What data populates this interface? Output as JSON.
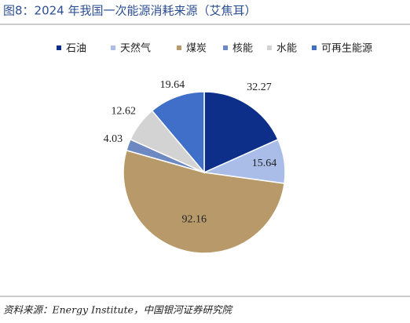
{
  "chart_data": {
    "type": "pie",
    "title": "图8：2024 年我国一次能源消耗来源（艾焦耳）",
    "categories": [
      "石油",
      "天然气",
      "煤炭",
      "核能",
      "水能",
      "可再生能源"
    ],
    "values": [
      32.27,
      15.64,
      92.16,
      4.03,
      12.62,
      19.64
    ],
    "colors": [
      "#0d2f8a",
      "#a9bde8",
      "#b89a6a",
      "#6e88c2",
      "#d3d3d3",
      "#3f6fc9"
    ],
    "legend": "top",
    "source": "资料来源：Energy Institute，中国银河证券研究院"
  }
}
